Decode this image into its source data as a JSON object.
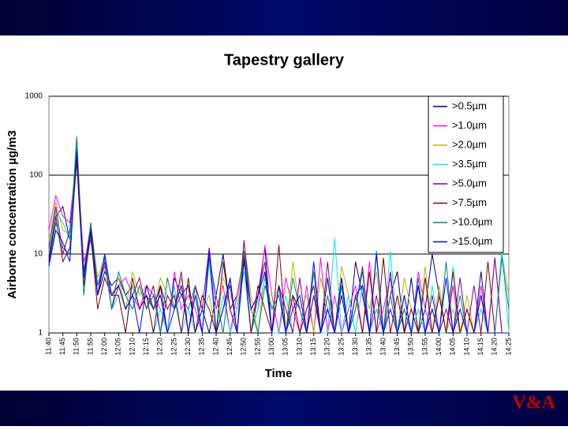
{
  "chart_data": {
    "type": "line",
    "title": "Tapestry gallery",
    "x_label": "Time",
    "y_label": "Airborne concentration µg/m3",
    "log_scale": true,
    "grid": true,
    "legend": "top-right",
    "ylim": [
      1,
      1000
    ],
    "yticks": [
      1,
      10,
      100,
      1000
    ],
    "categories": [
      "11:40",
      null,
      "11:45",
      null,
      "11:50",
      null,
      "11:55",
      null,
      "12:00",
      null,
      "12:05",
      null,
      "12:10",
      null,
      "12:15",
      null,
      "12:20",
      null,
      "12:25",
      null,
      "12:30",
      null,
      "12:35",
      null,
      "12:40",
      null,
      "12:45",
      null,
      "12:50",
      null,
      "12:55",
      null,
      "13:00",
      null,
      "13:05",
      null,
      "13:10",
      null,
      "13:15",
      null,
      "13:20",
      null,
      "13:25",
      null,
      "13:30",
      null,
      "13:35",
      null,
      "13:40",
      null,
      "13:45",
      null,
      "13:50",
      null,
      "13:55",
      null,
      "14:00",
      null,
      "14:05",
      null,
      "14:10",
      null,
      "14:15",
      null,
      "14:20",
      null,
      "14:25"
    ],
    "series": [
      {
        "name": ">0.5µm",
        "color": "#000080",
        "values": [
          8,
          30,
          40,
          15,
          250,
          5,
          20,
          3,
          6,
          4,
          5,
          3,
          4,
          2,
          3,
          2,
          4,
          1,
          5,
          3,
          4,
          1,
          2,
          1,
          3,
          10,
          2,
          3,
          10,
          1,
          3,
          12,
          1,
          4,
          1,
          3,
          2,
          1,
          3,
          1,
          5,
          1,
          3,
          1,
          8,
          3,
          1,
          2,
          1,
          3,
          6,
          1,
          5,
          1,
          2,
          10,
          3,
          1,
          4,
          1,
          2,
          1,
          6,
          1,
          1,
          1,
          1
        ]
      },
      {
        "name": ">1.0µm",
        "color": "#ff00ff",
        "values": [
          20,
          55,
          30,
          25,
          200,
          8,
          15,
          4,
          7,
          3,
          4,
          5,
          3,
          2,
          4,
          3,
          2,
          1,
          6,
          2,
          3,
          2,
          1,
          12,
          2,
          4,
          1,
          3,
          9,
          1,
          2,
          13,
          3,
          1,
          5,
          2,
          1,
          4,
          1,
          9,
          1,
          3,
          1,
          2,
          4,
          1,
          8,
          1,
          2,
          5,
          1,
          3,
          1,
          6,
          2,
          1,
          3,
          1,
          4,
          1,
          1,
          1,
          4,
          1,
          9,
          1,
          1
        ]
      },
      {
        "name": ">2.0µm",
        "color": "#b8b800",
        "values": [
          15,
          45,
          20,
          18,
          320,
          6,
          25,
          5,
          9,
          3,
          5,
          2,
          6,
          3,
          4,
          2,
          5,
          3,
          2,
          5,
          1,
          4,
          2,
          3,
          1,
          5,
          3,
          2,
          14,
          3,
          1,
          6,
          2,
          4,
          1,
          8,
          2,
          3,
          1,
          5,
          2,
          1,
          7,
          3,
          1,
          4,
          2,
          6,
          1,
          3,
          1,
          5,
          2,
          1,
          7,
          1,
          4,
          1,
          2,
          1,
          3,
          1,
          2,
          1,
          1,
          10,
          3
        ]
      },
      {
        "name": ">3.5µm",
        "color": "#00e5ff",
        "values": [
          10,
          35,
          25,
          15,
          280,
          4,
          18,
          3,
          10,
          2,
          3,
          1,
          4,
          2,
          3,
          1,
          2,
          1,
          4,
          1,
          2,
          1,
          1,
          8,
          1,
          3,
          1,
          2,
          6,
          1,
          2,
          5,
          1,
          1,
          3,
          1,
          1,
          2,
          4,
          1,
          1,
          16,
          1,
          3,
          1,
          4,
          1,
          2,
          1,
          11,
          1,
          3,
          1,
          2,
          1,
          4,
          1,
          1,
          7,
          1,
          1,
          1,
          2,
          1,
          1,
          12,
          1
        ]
      },
      {
        "name": ">5.0µm",
        "color": "#800080",
        "values": [
          12,
          40,
          10,
          20,
          180,
          6,
          22,
          3,
          8,
          2,
          4,
          2,
          3,
          5,
          2,
          4,
          1,
          3,
          2,
          6,
          1,
          4,
          2,
          12,
          1,
          2,
          4,
          1,
          15,
          2,
          3,
          8,
          1,
          4,
          2,
          1,
          5,
          1,
          3,
          1,
          8,
          1,
          4,
          1,
          2,
          7,
          1,
          3,
          1,
          6,
          1,
          2,
          1,
          4,
          1,
          3,
          1,
          2,
          1,
          5,
          1,
          4,
          1,
          1,
          9,
          1,
          1
        ]
      },
      {
        "name": ">7.5µm",
        "color": "#800000",
        "values": [
          9,
          30,
          8,
          12,
          150,
          4,
          18,
          2,
          5,
          3,
          3,
          1,
          5,
          2,
          3,
          1,
          4,
          2,
          3,
          1,
          5,
          1,
          3,
          2,
          1,
          8,
          2,
          1,
          9,
          1,
          4,
          2,
          1,
          13,
          1,
          3,
          1,
          2,
          4,
          1,
          2,
          1,
          5,
          1,
          3,
          1,
          6,
          1,
          9,
          1,
          3,
          1,
          2,
          1,
          5,
          1,
          3,
          1,
          6,
          1,
          2,
          1,
          1,
          8,
          1,
          1,
          1
        ]
      },
      {
        "name": ">10.0µm",
        "color": "#008080",
        "values": [
          7,
          25,
          12,
          10,
          300,
          3,
          25,
          4,
          9,
          2,
          6,
          3,
          2,
          4,
          2,
          3,
          1,
          5,
          2,
          3,
          2,
          4,
          1,
          9,
          3,
          1,
          5,
          1,
          11,
          2,
          1,
          4,
          2,
          3,
          1,
          5,
          2,
          1,
          6,
          1,
          3,
          1,
          4,
          1,
          2,
          6,
          1,
          11,
          1,
          3,
          1,
          2,
          1,
          5,
          1,
          2,
          1,
          8,
          1,
          3,
          1,
          1,
          3,
          1,
          1,
          9,
          2
        ]
      },
      {
        "name": ">15.0µm",
        "color": "#0000ff",
        "values": [
          7,
          20,
          14,
          8,
          200,
          5,
          20,
          3,
          10,
          3,
          4,
          2,
          3,
          1,
          4,
          2,
          3,
          1,
          2,
          4,
          1,
          3,
          1,
          11,
          1,
          2,
          5,
          1,
          8,
          2,
          3,
          6,
          1,
          4,
          1,
          2,
          3,
          1,
          8,
          1,
          2,
          1,
          5,
          1,
          3,
          4,
          1,
          10,
          1,
          2,
          1,
          3,
          1,
          4,
          1,
          2,
          1,
          5,
          1,
          2,
          1,
          1,
          3,
          1,
          1,
          1,
          1
        ]
      }
    ]
  },
  "footer": {
    "logo": "V&A"
  }
}
